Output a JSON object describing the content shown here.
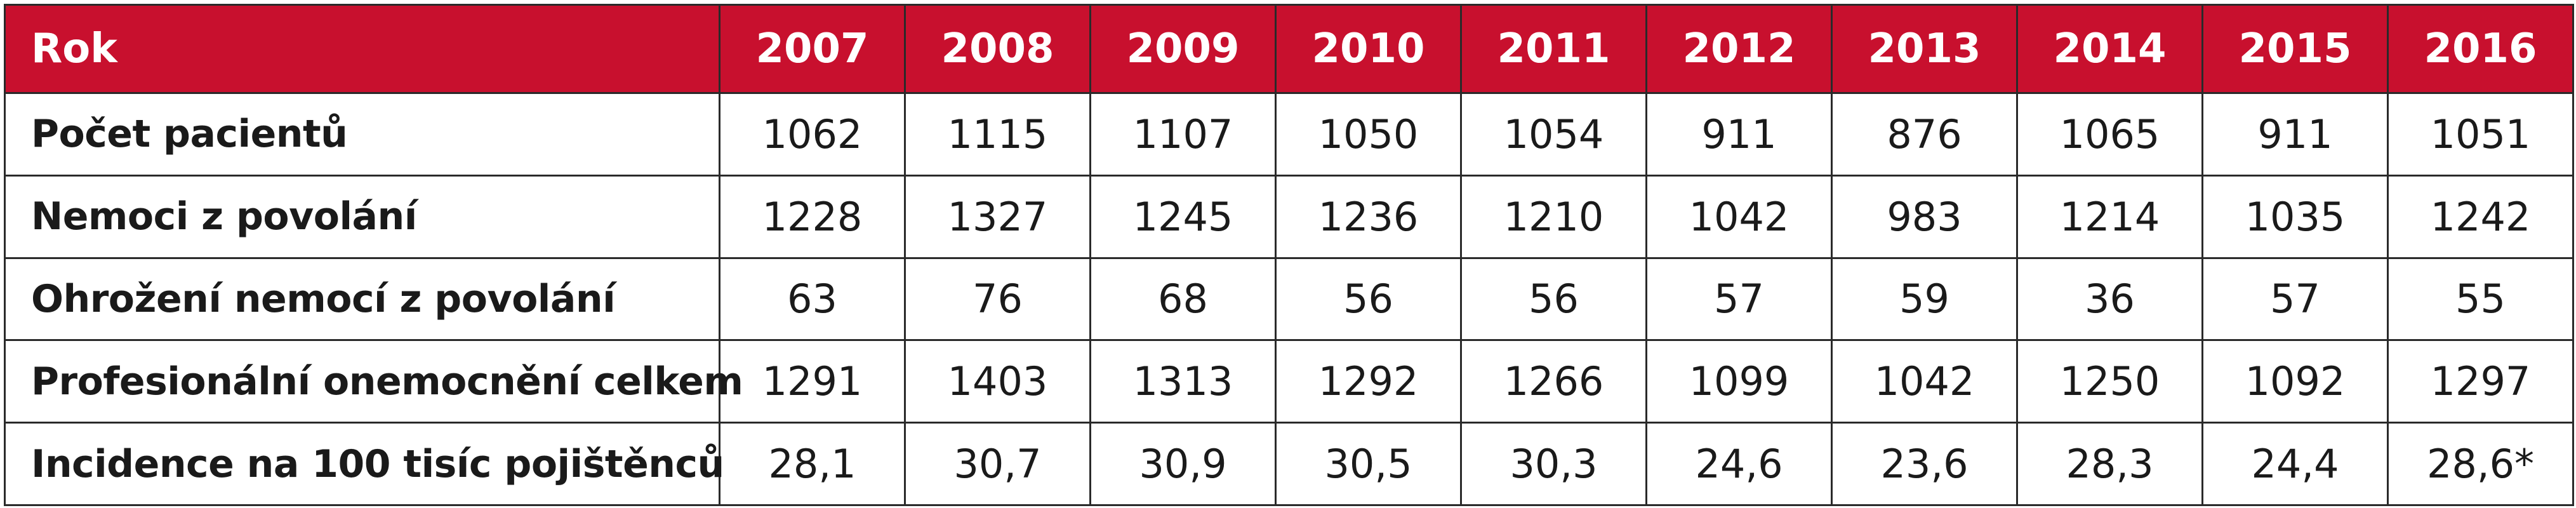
{
  "table": {
    "header_label": "Rok",
    "years": [
      "2007",
      "2008",
      "2009",
      "2010",
      "2011",
      "2012",
      "2013",
      "2014",
      "2015",
      "2016"
    ],
    "rows": [
      {
        "label": "Počet pacientů",
        "values": [
          "1062",
          "1115",
          "1107",
          "1050",
          "1054",
          "911",
          "876",
          "1065",
          "911",
          "1051"
        ]
      },
      {
        "label": "Nemoci z povolání",
        "values": [
          "1228",
          "1327",
          "1245",
          "1236",
          "1210",
          "1042",
          "983",
          "1214",
          "1035",
          "1242"
        ]
      },
      {
        "label": "Ohrožení nemocí z povolání",
        "values": [
          "63",
          "76",
          "68",
          "56",
          "56",
          "57",
          "59",
          "36",
          "57",
          "55"
        ]
      },
      {
        "label": "Profesionální onemocnění celkem",
        "values": [
          "1291",
          "1403",
          "1313",
          "1292",
          "1266",
          "1099",
          "1042",
          "1250",
          "1092",
          "1297"
        ]
      },
      {
        "label": "Incidence na 100 tisíc pojištěnců",
        "values": [
          "28,1",
          "30,7",
          "30,9",
          "30,5",
          "30,3",
          "24,6",
          "23,6",
          "28,3",
          "24,4",
          "28,6*"
        ]
      }
    ]
  },
  "colors": {
    "header_bg": "#c8102e",
    "header_text": "#ffffff",
    "border": "#2a2a2a"
  }
}
